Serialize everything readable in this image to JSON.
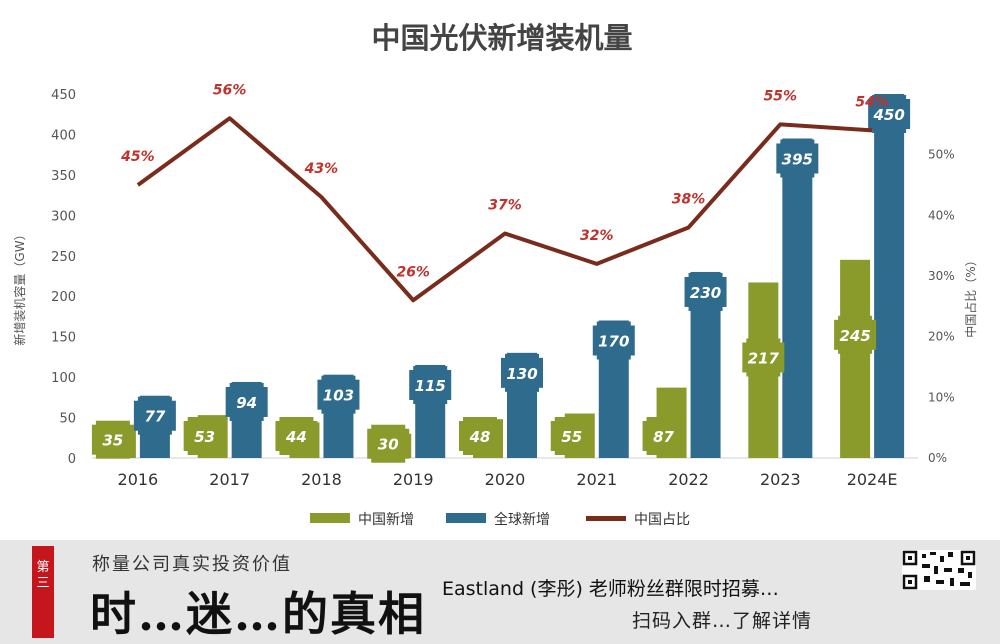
{
  "chart_data": {
    "type": "bar",
    "title": "中国光伏新增装机量",
    "categories": [
      "2016",
      "2017",
      "2018",
      "2019",
      "2020",
      "2021",
      "2022",
      "2023",
      "2024E"
    ],
    "series": [
      {
        "name": "中国新增",
        "type": "bar",
        "axis": "left",
        "color": "#8a9a2b",
        "values": [
          35,
          53,
          44,
          30,
          48,
          55,
          87,
          217,
          245
        ]
      },
      {
        "name": "全球新增",
        "type": "bar",
        "axis": "left",
        "color": "#2f6b8d",
        "values": [
          77,
          94,
          103,
          115,
          130,
          170,
          230,
          395,
          450
        ]
      },
      {
        "name": "中国占比",
        "type": "line",
        "axis": "right",
        "color": "#7a2c1c",
        "values": [
          45,
          56,
          43,
          26,
          37,
          32,
          38,
          55,
          54
        ],
        "labels": [
          "45%",
          "56%",
          "43%",
          "26%",
          "37%",
          "32%",
          "38%",
          "55%",
          "54%"
        ]
      }
    ],
    "ylabel": "新增装机容量（GW）",
    "y2label": "中国占比（%）",
    "ylim": [
      0,
      450
    ],
    "yticks": [
      "0",
      "50",
      "100",
      "150",
      "200",
      "250",
      "300",
      "350",
      "400",
      "450"
    ],
    "y2lim": [
      0,
      60
    ],
    "y2ticks": [
      "0%",
      "10%",
      "20%",
      "30%",
      "40%",
      "50%"
    ],
    "grid": false,
    "legend": "bottom"
  },
  "banner": {
    "badge": "第三",
    "subtitle": "称量公司真实投资价值",
    "title": "时…迷…的真相",
    "line1": "Eastland (李彤) 老师粉丝群限时招募…",
    "line2": "扫码入群…了解详情"
  },
  "colors": {
    "banner_background": "#e6e6e6",
    "badge": "#c4161c"
  }
}
